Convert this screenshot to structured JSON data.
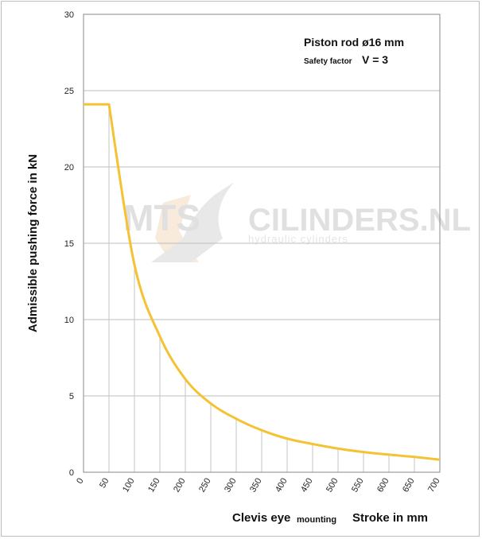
{
  "chart_data": {
    "type": "line",
    "x": [
      0,
      50,
      100,
      150,
      200,
      250,
      300,
      350,
      400,
      450,
      500,
      550,
      600,
      650,
      700
    ],
    "series": [
      {
        "values": [
          24.1,
          24.1,
          13.6,
          8.9,
          6.1,
          4.5,
          3.5,
          2.75,
          2.2,
          1.85,
          1.55,
          1.32,
          1.15,
          1.0,
          0.82
        ]
      }
    ],
    "xlim": [
      0,
      700
    ],
    "ylim": [
      0,
      30
    ],
    "xticks": [
      "0",
      "50",
      "100",
      "150",
      "200",
      "250",
      "300",
      "350",
      "400",
      "450",
      "500",
      "550",
      "600",
      "650",
      "700"
    ],
    "yticks": [
      "0",
      "5",
      "10",
      "15",
      "20",
      "25",
      "30"
    ],
    "ylabel": "Admissible  pushing  force in  kN",
    "xlabel_main": "Clevis eye",
    "xlabel_sub": "mounting",
    "xlabel_right": "Stroke in mm",
    "note_line1": "Piston rod ø16 mm",
    "note_line2_small": "Safety factor",
    "note_line2_big": "V = 3",
    "grid": "horizontal lines plus vertical drop lines under curve",
    "line_color": "#f5c234",
    "watermark": {
      "left": "MTS",
      "right": "CILINDERS.NL",
      "sub": "hydraulic  cylinders"
    }
  }
}
